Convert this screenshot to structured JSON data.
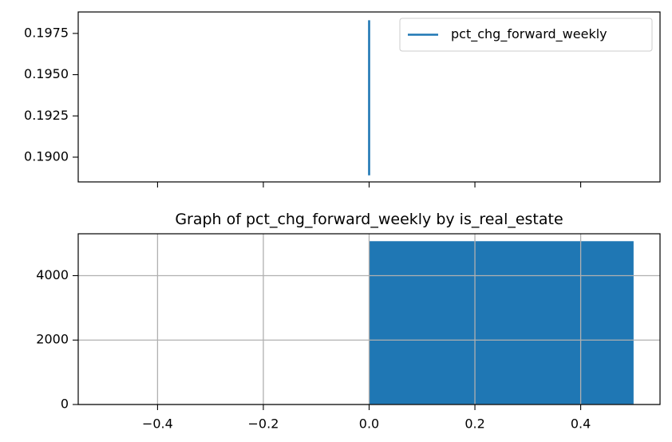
{
  "chart_data": [
    {
      "type": "line",
      "title": "",
      "xlabel": "",
      "ylabel": "",
      "xlim": [
        -0.55,
        0.55
      ],
      "ylim": [
        0.1885,
        0.1988
      ],
      "xticks": [
        -0.4,
        -0.2,
        0.0,
        0.2,
        0.4
      ],
      "xtick_labels_visible": false,
      "yticks": [
        0.19,
        0.1925,
        0.195,
        0.1975
      ],
      "ytick_labels": [
        "0.1900",
        "0.1925",
        "0.1950",
        "0.1975"
      ],
      "grid": false,
      "legend": {
        "position": "upper right",
        "entries": [
          "pct_chg_forward_weekly"
        ]
      },
      "series": [
        {
          "name": "pct_chg_forward_weekly",
          "color": "#1f77b4",
          "x": [
            0,
            0
          ],
          "y": [
            0.1889,
            0.1983
          ]
        }
      ]
    },
    {
      "type": "bar",
      "title": "Graph of pct_chg_forward_weekly by is_real_estate",
      "xlabel": "",
      "ylabel": "",
      "xlim": [
        -0.55,
        0.55
      ],
      "ylim": [
        0,
        5300
      ],
      "xticks": [
        -0.4,
        -0.2,
        0.0,
        0.2,
        0.4
      ],
      "xtick_labels": [
        "−0.4",
        "−0.2",
        "0.0",
        "0.2",
        "0.4"
      ],
      "yticks": [
        0,
        2000,
        4000
      ],
      "ytick_labels": [
        "0",
        "2000",
        "4000"
      ],
      "grid": true,
      "bars": [
        {
          "x_start": 0.0,
          "x_end": 0.5,
          "value": 5070,
          "color": "#1f77b4"
        }
      ]
    }
  ]
}
